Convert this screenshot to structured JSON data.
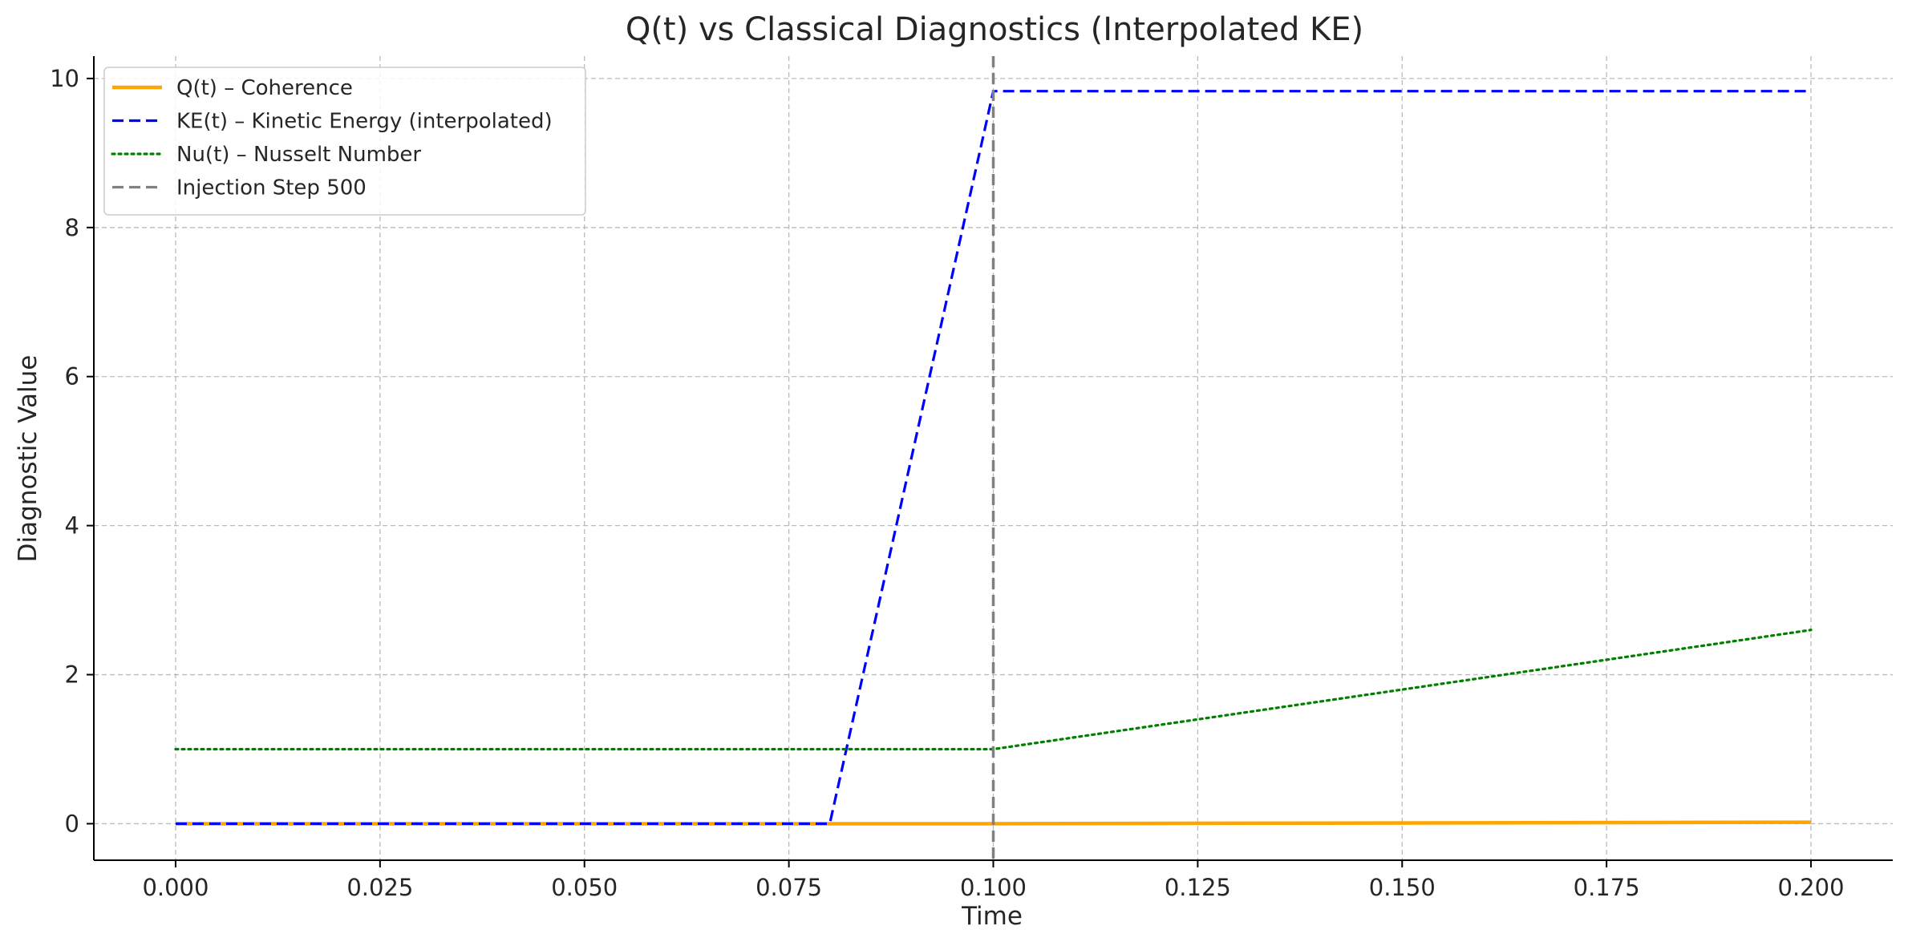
{
  "chart_data": {
    "type": "line",
    "title": "Q(t) vs Classical Diagnostics (Interpolated KE)",
    "xlabel": "Time",
    "ylabel": "Diagnostic Value",
    "xlim": [
      -0.01,
      0.21
    ],
    "ylim": [
      -0.49,
      10.3
    ],
    "xticks": [
      0.0,
      0.025,
      0.05,
      0.075,
      0.1,
      0.125,
      0.15,
      0.175,
      0.2
    ],
    "xtick_labels": [
      "0.000",
      "0.025",
      "0.050",
      "0.075",
      "0.100",
      "0.125",
      "0.150",
      "0.175",
      "0.200"
    ],
    "yticks": [
      0,
      2,
      4,
      6,
      8,
      10
    ],
    "ytick_labels": [
      "0",
      "2",
      "4",
      "6",
      "8",
      "10"
    ],
    "grid": true,
    "legend_position": "top-left",
    "series": [
      {
        "name": "Q(t) – Coherence",
        "color": "#FFA500",
        "style": "solid",
        "x": [
          0.0,
          0.08,
          0.1,
          0.2
        ],
        "y": [
          0.0,
          0.0,
          0.0,
          0.02
        ]
      },
      {
        "name": "KE(t) – Kinetic Energy (interpolated)",
        "color": "#0000FF",
        "style": "dashed",
        "x": [
          0.0,
          0.08,
          0.1,
          0.2
        ],
        "y": [
          0.0,
          0.0,
          9.83,
          9.83
        ]
      },
      {
        "name": "Nu(t) – Nusselt Number",
        "color": "#008000",
        "style": "dotted",
        "x": [
          0.0,
          0.1,
          0.2
        ],
        "y": [
          1.0,
          1.0,
          2.6
        ]
      },
      {
        "name": "Injection Step 500",
        "color": "#808080",
        "style": "dashed",
        "type": "vline",
        "x": 0.1
      }
    ]
  }
}
